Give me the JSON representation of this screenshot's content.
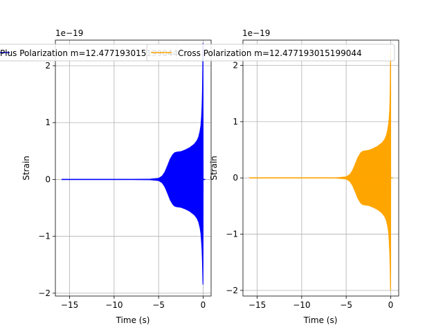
{
  "chart_data": [
    {
      "type": "line",
      "title": "",
      "xlabel": "Time (s)",
      "ylabel": "Strain",
      "offset_label": "1e−19",
      "xlim": [
        -16.6,
        0.9
      ],
      "ylim": [
        -2.05,
        2.45
      ],
      "xticks": [
        -15,
        -10,
        -5,
        0
      ],
      "yticks": [
        -2,
        -1,
        0,
        1,
        2
      ],
      "xtick_labels": [
        "−15",
        "−10",
        "−5",
        "0"
      ],
      "ytick_labels": [
        "−2",
        "−1",
        "0",
        "1",
        "2"
      ],
      "grid": true,
      "legend_position": "top",
      "series": [
        {
          "name": "Plus Polarization m=12.477193015199044",
          "color": "#0000ff",
          "x": [
            -15.9,
            -8.0,
            -6.0,
            -5.0,
            -4.6,
            -4.3,
            -4.0,
            -3.7,
            -3.4,
            -3.2,
            -3.0,
            -2.5,
            -2.0,
            -1.5,
            -1.0,
            -0.7,
            -0.5,
            -0.35,
            -0.25,
            -0.18,
            -0.12,
            -0.08,
            -0.05,
            -0.03,
            -0.01,
            0.01
          ],
          "upper": [
            0.0,
            0.0,
            0.005,
            0.02,
            0.06,
            0.13,
            0.24,
            0.36,
            0.44,
            0.47,
            0.48,
            0.49,
            0.52,
            0.56,
            0.62,
            0.68,
            0.75,
            0.85,
            0.95,
            1.1,
            1.3,
            1.55,
            1.9,
            2.2,
            2.4,
            0.0
          ],
          "lower": [
            0.0,
            0.0,
            -0.005,
            -0.02,
            -0.06,
            -0.13,
            -0.24,
            -0.36,
            -0.44,
            -0.47,
            -0.48,
            -0.49,
            -0.52,
            -0.56,
            -0.62,
            -0.68,
            -0.75,
            -0.85,
            -0.95,
            -1.1,
            -1.25,
            -1.45,
            -1.65,
            -1.8,
            -1.85,
            0.0
          ]
        }
      ]
    },
    {
      "type": "line",
      "title": "",
      "xlabel": "Time (s)",
      "ylabel": "Strain",
      "offset_label": "1e−19",
      "xlim": [
        -16.6,
        0.9
      ],
      "ylim": [
        -2.1,
        2.45
      ],
      "xticks": [
        -15,
        -10,
        -5,
        0
      ],
      "yticks": [
        -2,
        -1,
        0,
        1,
        2
      ],
      "xtick_labels": [
        "−15",
        "−10",
        "−5",
        "0"
      ],
      "ytick_labels": [
        "−2",
        "−1",
        "0",
        "1",
        "2"
      ],
      "grid": true,
      "legend_position": "top",
      "series": [
        {
          "name": "Cross Polarization m=12.477193015199044",
          "color": "#ffa500",
          "x": [
            -15.9,
            -8.0,
            -6.0,
            -5.0,
            -4.6,
            -4.3,
            -4.0,
            -3.7,
            -3.4,
            -3.2,
            -3.0,
            -2.5,
            -2.0,
            -1.5,
            -1.0,
            -0.7,
            -0.5,
            -0.35,
            -0.25,
            -0.18,
            -0.12,
            -0.08,
            -0.05,
            -0.03,
            -0.01,
            0.01
          ],
          "upper": [
            0.0,
            0.0,
            0.005,
            0.02,
            0.06,
            0.13,
            0.24,
            0.36,
            0.44,
            0.47,
            0.48,
            0.49,
            0.52,
            0.56,
            0.62,
            0.68,
            0.75,
            0.85,
            0.95,
            1.05,
            1.2,
            1.4,
            1.8,
            2.2,
            2.3,
            0.0
          ],
          "lower": [
            0.0,
            0.0,
            -0.005,
            -0.02,
            -0.06,
            -0.13,
            -0.24,
            -0.36,
            -0.44,
            -0.47,
            -0.48,
            -0.49,
            -0.52,
            -0.56,
            -0.62,
            -0.68,
            -0.75,
            -0.85,
            -0.95,
            -1.1,
            -1.3,
            -1.5,
            -1.75,
            -1.95,
            -2.0,
            0.0
          ]
        }
      ]
    }
  ]
}
